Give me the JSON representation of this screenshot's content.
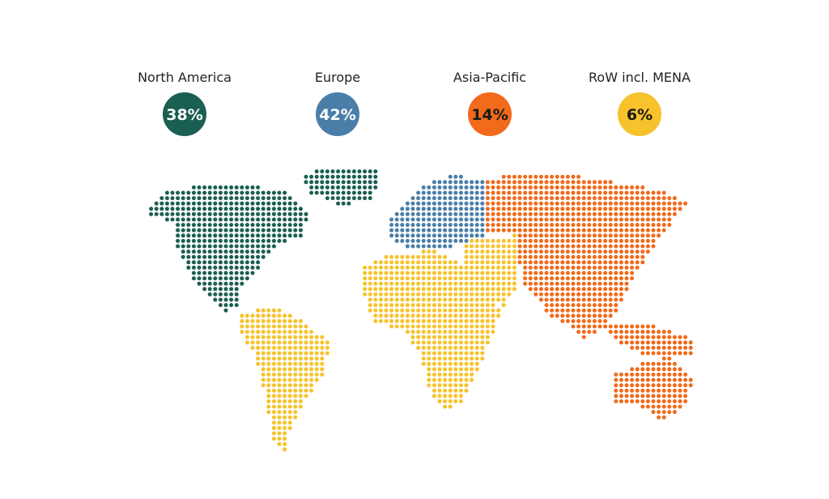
{
  "regions": [
    {
      "name": "North America",
      "share": "38%",
      "color": "#1b5e52",
      "text_color": "#ffffff"
    },
    {
      "name": "Europe",
      "share": "42%",
      "color": "#4a7ea8",
      "text_color": "#ffffff"
    },
    {
      "name": "Asia-Pacific",
      "share": "14%",
      "color": "#f26a1b",
      "text_color": "#1a1a1a"
    },
    {
      "name": "RoW incl. MENA",
      "share": "6%",
      "color": "#f7c22b",
      "text_color": "#1a1a1a"
    }
  ]
}
